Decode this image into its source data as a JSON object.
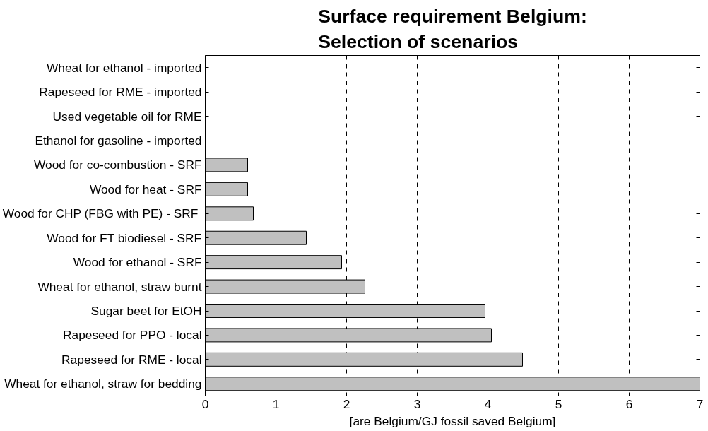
{
  "chart_data": {
    "type": "bar",
    "orientation": "horizontal",
    "title": "Surface requirement Belgium:\nSelection of scenarios",
    "xlabel": "[are Belgium/GJ fossil saved Belgium]",
    "categories": [
      "Wheat for ethanol - imported",
      "Rapeseed for RME - imported",
      "Used vegetable oil for RME",
      "Ethanol for gasoline - imported",
      "Wood for co-combustion - SRF",
      "Wood for heat - SRF",
      "Wood  for CHP (FBG with PE) - SRF",
      "Wood for FT biodiesel - SRF",
      "Wood for ethanol - SRF",
      "Wheat for ethanol, straw burnt",
      "Sugar beet for EtOH",
      "Rapeseed for PPO - local",
      "Rapeseed for RME - local",
      "Wheat for ethanol, straw for bedding"
    ],
    "values": [
      null,
      null,
      null,
      null,
      0.6,
      0.6,
      0.68,
      1.43,
      1.93,
      2.26,
      3.96,
      4.05,
      4.49,
      7
    ],
    "color": "#c0c0c0",
    "xlim": [
      0,
      7
    ],
    "xticks": [
      0,
      1,
      2,
      3,
      4,
      5,
      6,
      7
    ],
    "grid": "x"
  }
}
